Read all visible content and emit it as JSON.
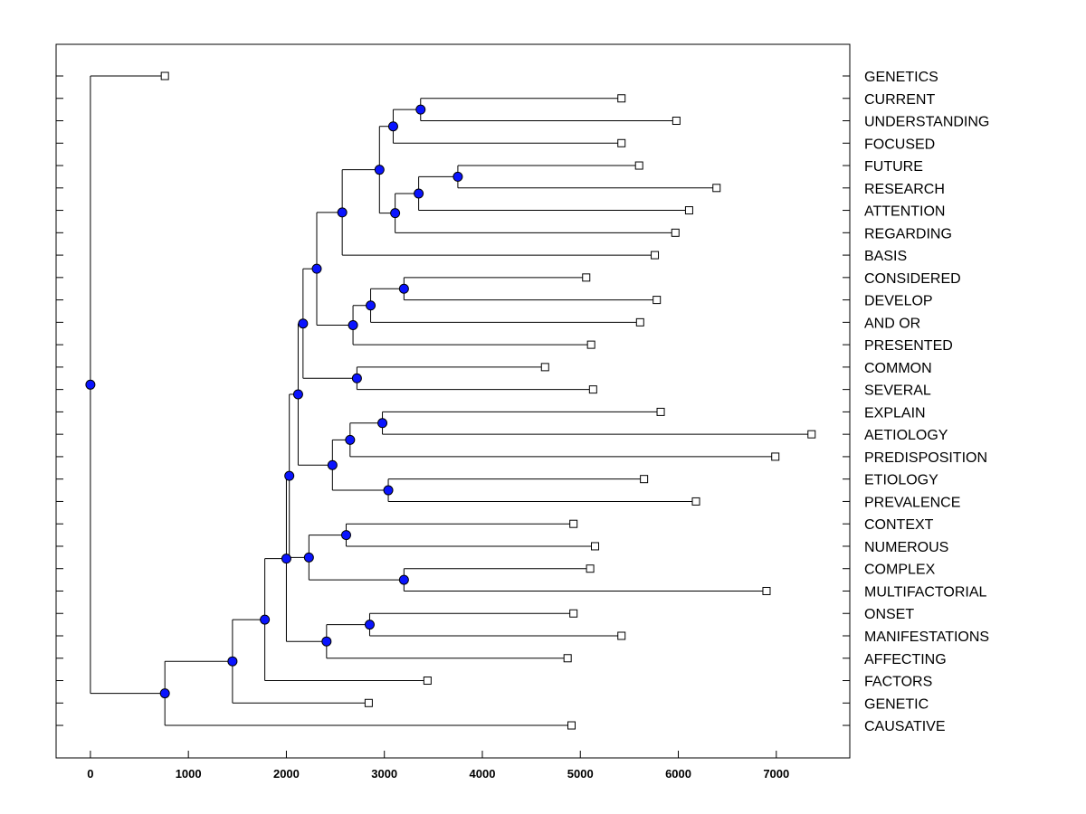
{
  "chart_data": {
    "type": "dendrogram",
    "xlim": [
      -350,
      7750
    ],
    "xticks": [
      0,
      1000,
      2000,
      3000,
      4000,
      5000,
      6000,
      7000
    ],
    "grid": false,
    "colors": {
      "node": "#0a14ff",
      "line": "#000000",
      "leaf": "#ffffff"
    },
    "leaves": [
      {
        "label": "GENETICS",
        "value": 760
      },
      {
        "label": "CURRENT",
        "value": 5420
      },
      {
        "label": "UNDERSTANDING",
        "value": 5980
      },
      {
        "label": "FOCUSED",
        "value": 5420
      },
      {
        "label": "FUTURE",
        "value": 5600
      },
      {
        "label": "RESEARCH",
        "value": 6390
      },
      {
        "label": "ATTENTION",
        "value": 6110
      },
      {
        "label": "REGARDING",
        "value": 5970
      },
      {
        "label": "BASIS",
        "value": 5760
      },
      {
        "label": "CONSIDERED",
        "value": 5060
      },
      {
        "label": "DEVELOP",
        "value": 5780
      },
      {
        "label": "AND OR",
        "value": 5610
      },
      {
        "label": "PRESENTED",
        "value": 5110
      },
      {
        "label": "COMMON",
        "value": 4640
      },
      {
        "label": "SEVERAL",
        "value": 5130
      },
      {
        "label": "EXPLAIN",
        "value": 5820
      },
      {
        "label": "AETIOLOGY",
        "value": 7360
      },
      {
        "label": "PREDISPOSITION",
        "value": 6990
      },
      {
        "label": "ETIOLOGY",
        "value": 5650
      },
      {
        "label": "PREVALENCE",
        "value": 6180
      },
      {
        "label": "CONTEXT",
        "value": 4930
      },
      {
        "label": "NUMEROUS",
        "value": 5150
      },
      {
        "label": "COMPLEX",
        "value": 5100
      },
      {
        "label": "MULTIFACTORIAL",
        "value": 6900
      },
      {
        "label": "ONSET",
        "value": 4930
      },
      {
        "label": "MANIFESTATIONS",
        "value": 5420
      },
      {
        "label": "AFFECTING",
        "value": 4870
      },
      {
        "label": "FACTORS",
        "value": 3440
      },
      {
        "label": "GENETIC",
        "value": 2840
      },
      {
        "label": "CAUSATIVE",
        "value": 4910
      }
    ],
    "merges": [
      {
        "id": "n1",
        "value": 3370,
        "children": [
          "L1",
          "L2"
        ]
      },
      {
        "id": "n2",
        "value": 3090,
        "children": [
          "n1",
          "L3"
        ]
      },
      {
        "id": "n3",
        "value": 3750,
        "children": [
          "L4",
          "L5"
        ]
      },
      {
        "id": "n4",
        "value": 3350,
        "children": [
          "n3",
          "L6"
        ]
      },
      {
        "id": "n5",
        "value": 3110,
        "children": [
          "n4",
          "L7"
        ]
      },
      {
        "id": "n6",
        "value": 2950,
        "children": [
          "n2",
          "n5"
        ]
      },
      {
        "id": "n7",
        "value": 2570,
        "children": [
          "n6",
          "L8"
        ]
      },
      {
        "id": "n8",
        "value": 3200,
        "children": [
          "L9",
          "L10"
        ]
      },
      {
        "id": "n9",
        "value": 2860,
        "children": [
          "n8",
          "L11"
        ]
      },
      {
        "id": "n10",
        "value": 2680,
        "children": [
          "n9",
          "L12"
        ]
      },
      {
        "id": "n11",
        "value": 2310,
        "children": [
          "n7",
          "n10"
        ]
      },
      {
        "id": "n12",
        "value": 2720,
        "children": [
          "L13",
          "L14"
        ]
      },
      {
        "id": "n13",
        "value": 2170,
        "children": [
          "n11",
          "n12"
        ]
      },
      {
        "id": "n14",
        "value": 2980,
        "children": [
          "L15",
          "L16"
        ]
      },
      {
        "id": "n15",
        "value": 2650,
        "children": [
          "n14",
          "L17"
        ]
      },
      {
        "id": "n16",
        "value": 3040,
        "children": [
          "L18",
          "L19"
        ]
      },
      {
        "id": "n17",
        "value": 2470,
        "children": [
          "n15",
          "n16"
        ]
      },
      {
        "id": "n18",
        "value": 2120,
        "children": [
          "n13",
          "n17"
        ]
      },
      {
        "id": "n19",
        "value": 2610,
        "children": [
          "L20",
          "L21"
        ]
      },
      {
        "id": "n20",
        "value": 3200,
        "children": [
          "L22",
          "L23"
        ]
      },
      {
        "id": "n21",
        "value": 2230,
        "children": [
          "n19",
          "n20"
        ]
      },
      {
        "id": "n22",
        "value": 2030,
        "children": [
          "n18",
          "n21"
        ]
      },
      {
        "id": "n23",
        "value": 2850,
        "children": [
          "L24",
          "L25"
        ]
      },
      {
        "id": "n24",
        "value": 2410,
        "children": [
          "n23",
          "L26"
        ]
      },
      {
        "id": "n25",
        "value": 2000,
        "children": [
          "n22",
          "n24"
        ]
      },
      {
        "id": "n26",
        "value": 1780,
        "children": [
          "n25",
          "L27"
        ]
      },
      {
        "id": "n27",
        "value": 1450,
        "children": [
          "n26",
          "L28"
        ]
      },
      {
        "id": "n28",
        "value": 760,
        "children": [
          "n27",
          "L29"
        ]
      },
      {
        "id": "n29",
        "value": 0,
        "children": [
          "L0",
          "n28"
        ]
      }
    ]
  }
}
